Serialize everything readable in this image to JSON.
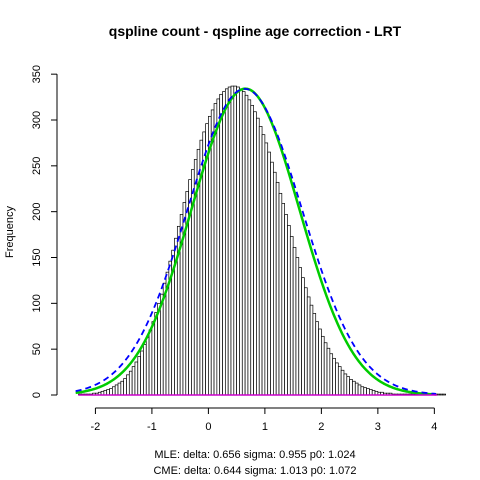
{
  "chart_data": {
    "type": "bar",
    "title": "qspline count - qspline age correction - LRT",
    "xlabel": "",
    "ylabel": "Frequency",
    "xlim": [
      -2.45,
      4.1
    ],
    "ylim": [
      0,
      360
    ],
    "xticks": [
      -2,
      -1,
      0,
      1,
      2,
      3,
      4
    ],
    "yticks": [
      0,
      50,
      100,
      150,
      200,
      250,
      300,
      350
    ],
    "bin_width": 0.05,
    "bin_start": -2.3,
    "counts": [
      1,
      1,
      1,
      1,
      1,
      2,
      2,
      3,
      4,
      5,
      6,
      7,
      9,
      11,
      13,
      15,
      18,
      22,
      26,
      31,
      36,
      42,
      48,
      55,
      63,
      71,
      80,
      90,
      100,
      110,
      122,
      134,
      146,
      158,
      171,
      184,
      197,
      210,
      222,
      235,
      246,
      257,
      268,
      278,
      287,
      296,
      304,
      311,
      318,
      323,
      328,
      331,
      334,
      336,
      337,
      337,
      336,
      334,
      331,
      327,
      322,
      316,
      309,
      302,
      293,
      284,
      275,
      265,
      254,
      243,
      232,
      220,
      209,
      197,
      185,
      173,
      161,
      150,
      139,
      128,
      117,
      107,
      98,
      89,
      80,
      72,
      64,
      57,
      51,
      45,
      40,
      35,
      31,
      27,
      23,
      20,
      17,
      15,
      13,
      11,
      9,
      8,
      7,
      6,
      5,
      4,
      3,
      3,
      2,
      2,
      2,
      1,
      1,
      1,
      1,
      1,
      1,
      1,
      1,
      1,
      1,
      1,
      1,
      1,
      1,
      1,
      1,
      1,
      1,
      1
    ],
    "series": [
      {
        "name": "",
        "kind": "curve",
        "color": "#00cc00",
        "style": "solid",
        "width": 2.5,
        "function": "normal",
        "mu": 0.656,
        "sigma": 0.955,
        "scale": 800
      },
      {
        "name": "",
        "kind": "curve",
        "color": "#0000ff",
        "style": "dashed",
        "width": 1.8,
        "function": "normal",
        "mu": 0.644,
        "sigma": 1.013,
        "scale": 848
      },
      {
        "name": "",
        "kind": "baseline",
        "color": "#cc00cc",
        "value": 0
      }
    ],
    "footnotes": [
      "MLE: delta: 0.656 sigma: 0.955 p0: 1.024",
      "CME: delta: 0.644 sigma: 1.013 p0: 1.072"
    ],
    "grid": false,
    "legend": "none"
  }
}
